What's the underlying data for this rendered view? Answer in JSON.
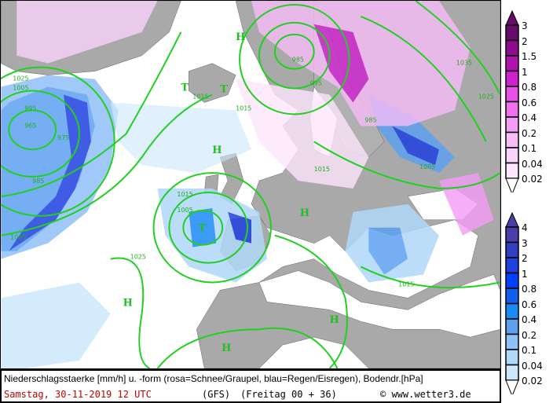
{
  "footer": {
    "description": "Niederschlagsstaerke [mm/h] u. -form (rosa=Schnee/Graupel, blau=Regen/Eisregen), Bodendr.[hPa]",
    "date": "Samstag, 30-11-2019  12 UTC",
    "model": "(GFS)",
    "run": "(Freitag 00 + 36)",
    "copyright": "© www.wetter3.de"
  },
  "legend_snow": {
    "labels": [
      "3",
      "2",
      "1.5",
      "1",
      "0.8",
      "0.6",
      "0.4",
      "0.2",
      "0.1",
      "0.04",
      "0.02"
    ],
    "colors": [
      "#6a0a6a",
      "#8c0c8c",
      "#b012b0",
      "#d020d0",
      "#e850e8",
      "#f070f0",
      "#f59cf5",
      "#f8bcf8",
      "#fad2fa",
      "#fde6fd",
      "#ffffff"
    ]
  },
  "legend_rain": {
    "labels": [
      "4",
      "3",
      "2",
      "1",
      "0.8",
      "0.6",
      "0.4",
      "0.2",
      "0.1",
      "0.04",
      "0.02"
    ],
    "colors": [
      "#4a3ea8",
      "#3040c0",
      "#2040e0",
      "#0040ff",
      "#1060f0",
      "#1a8af5",
      "#5ea0f0",
      "#90c0f8",
      "#b0d8fa",
      "#cce8fc",
      "#ffffff"
    ]
  },
  "map": {
    "high_label": "H",
    "low_label": "T",
    "isobar_labels": [
      "1025",
      "1005",
      "1015",
      "995",
      "985",
      "975",
      "965",
      "1005",
      "1035",
      "1025",
      "1015",
      "985",
      "1005",
      "1015",
      "1025",
      "1015",
      "1005",
      "1015",
      "985",
      "995"
    ],
    "colors": {
      "land": "#a9a9a9",
      "sea": "#ffffff",
      "isobar": "#20c020"
    }
  }
}
